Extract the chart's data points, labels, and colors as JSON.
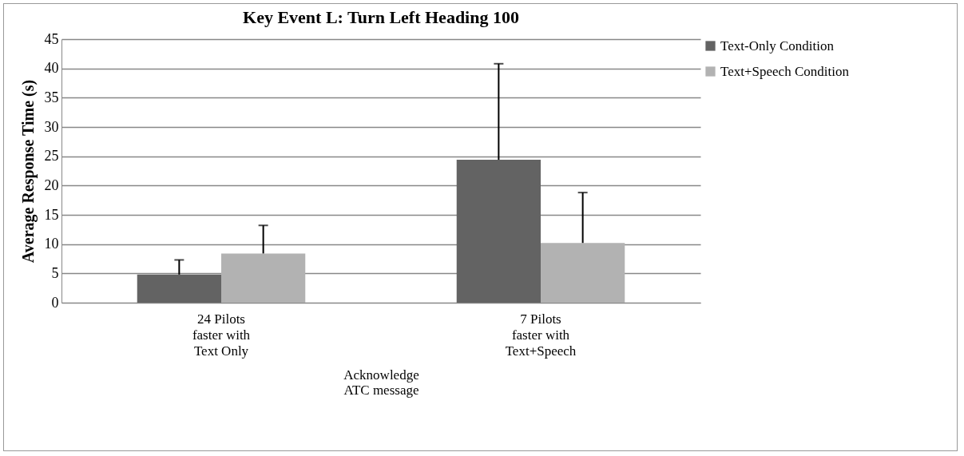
{
  "chart_data": {
    "type": "bar",
    "title": "Key Event L: Turn Left Heading 100",
    "ylabel": "Average Response Time (s)",
    "xlabel": "Acknowledge\nATC message",
    "categories": [
      "24 Pilots\nfaster with\nText Only",
      "7 Pilots\nfaster with\nText+Speech"
    ],
    "series": [
      {
        "name": "Text-Only Condition",
        "color": "#636363",
        "values": [
          4.8,
          24.4
        ],
        "errors": [
          [
            4.8,
            7.3
          ],
          [
            24.4,
            40.8
          ]
        ]
      },
      {
        "name": "Text+Speech Condition",
        "color": "#b2b2b2",
        "values": [
          8.4,
          10.2
        ],
        "errors": [
          [
            8.4,
            13.2
          ],
          [
            10.2,
            18.8
          ]
        ]
      }
    ],
    "ylim": [
      0,
      45
    ],
    "yticks": [
      0,
      5,
      10,
      15,
      20,
      25,
      30,
      35,
      40,
      45
    ],
    "grid": "y",
    "legend": "right"
  }
}
